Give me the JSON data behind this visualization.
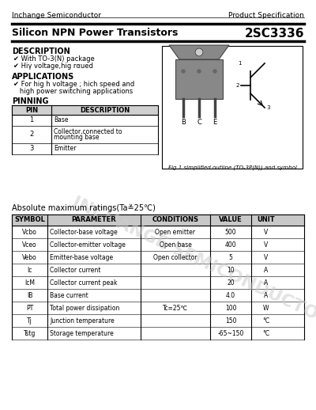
{
  "company": "Inchange Semiconductor",
  "spec_type": "Product Specification",
  "title": "Silicon NPN Power Transistors",
  "part_number": "2SC3336",
  "description_title": "DESCRIPTION",
  "description_items": [
    "✔ With TO-3(N) package",
    "✔ Hiγ voltage,hig rαued"
  ],
  "applications_title": "APPLICATIONS",
  "applications_items": [
    "✔ For hig h voltage ; hich speed and",
    "   high power switching applications"
  ],
  "pinning_title": "PINNING",
  "pin_headers": [
    "PIN",
    "DESCRIPTION"
  ],
  "pin_rows": [
    [
      "1",
      "Base"
    ],
    [
      "2",
      "Collector,connected to\nmounting base"
    ],
    [
      "3",
      "Emitter"
    ]
  ],
  "fig_caption": "Fig.1 simplified outline (TO-3P(N)) and symbol",
  "abs_max_title": "Absolute maximum ratings(Ta≚25℃)",
  "table_headers": [
    "SYMBOL",
    "PARAMETER",
    "CONDITIONS",
    "VALUE",
    "UNIT"
  ],
  "table_rows": [
    [
      "Vcbo",
      "Collector-base voltage",
      "Open emitter",
      "500",
      "V"
    ],
    [
      "Vceo",
      "Collector-emitter voltage",
      "Open base",
      "400",
      "V"
    ],
    [
      "Vebo",
      "Emitter-base voltage",
      "Open collector",
      "5",
      "V"
    ],
    [
      "Ic",
      "Collector current",
      "",
      "10",
      "A"
    ],
    [
      "IcM",
      "Collector current peak",
      "",
      "20",
      "A"
    ],
    [
      "IB",
      "Base current",
      "",
      "4.0",
      "A"
    ],
    [
      "PT",
      "Total power dissipation",
      "Tc=25℃",
      "100",
      "W"
    ],
    [
      "Tj",
      "Junction temperature",
      "",
      "150",
      "°C"
    ],
    [
      "Tstg",
      "Storage temperature",
      "",
      "-65~150",
      "°C"
    ]
  ],
  "watermark": "INCHANGE SEMICONDUCTOR",
  "bg_color": "#ffffff"
}
